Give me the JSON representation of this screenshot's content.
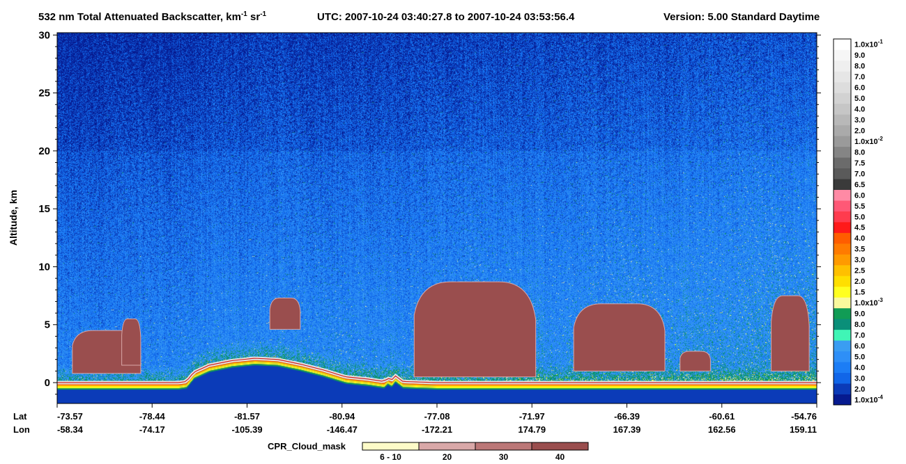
{
  "chart_data": {
    "type": "heatmap",
    "title": "532 nm Total Attenuated Backscatter, km-1 sr-1",
    "title_main": "532 nm Total Attenuated Backscatter, km",
    "title_sup1": "-1",
    "title_sr": " sr",
    "title_sup2": "-1",
    "title_utc": "UTC:  2007-10-24 03:40:27.8  to  2007-10-24 03:53:56.4",
    "title_version": "Version: 5.00  Standard  Daytime",
    "ylabel": "Altitude, km",
    "ylim": [
      -1.8,
      30.2
    ],
    "y_ticks": [
      0,
      5,
      10,
      15,
      20,
      25,
      30
    ],
    "x_row_labels": [
      "Lat",
      "Lon"
    ],
    "lat_ticks": [
      "-73.57",
      "-78.44",
      "-81.57",
      "-80.94",
      "-77.08",
      "-71.97",
      "-66.39",
      "-60.61",
      "-54.76"
    ],
    "lon_ticks": [
      "-58.34",
      "-74.17",
      "-105.39",
      "-146.47",
      "-172.21",
      "174.79",
      "167.39",
      "162.56",
      "159.11"
    ],
    "surface_altitude_km": [
      {
        "x": 0.0,
        "alt": 0.0
      },
      {
        "x": 0.08,
        "alt": 0.0
      },
      {
        "x": 0.16,
        "alt": 0.0
      },
      {
        "x": 0.17,
        "alt": 0.1
      },
      {
        "x": 0.18,
        "alt": 0.9
      },
      {
        "x": 0.2,
        "alt": 1.5
      },
      {
        "x": 0.23,
        "alt": 1.9
      },
      {
        "x": 0.26,
        "alt": 2.1
      },
      {
        "x": 0.29,
        "alt": 2.0
      },
      {
        "x": 0.32,
        "alt": 1.6
      },
      {
        "x": 0.35,
        "alt": 1.1
      },
      {
        "x": 0.38,
        "alt": 0.5
      },
      {
        "x": 0.41,
        "alt": 0.3
      },
      {
        "x": 0.43,
        "alt": 0.1
      },
      {
        "x": 0.44,
        "alt": 0.2
      },
      {
        "x": 0.435,
        "alt": 0.4
      },
      {
        "x": 0.445,
        "alt": 0.6
      },
      {
        "x": 0.455,
        "alt": 0.1
      },
      {
        "x": 0.5,
        "alt": 0.0
      },
      {
        "x": 1.0,
        "alt": 0.0
      }
    ],
    "cloud_regions": [
      {
        "x0": 0.02,
        "x1": 0.11,
        "bottom": 0.8,
        "top": 4.5
      },
      {
        "x0": 0.085,
        "x1": 0.11,
        "bottom": 1.5,
        "top": 5.5
      },
      {
        "x0": 0.28,
        "x1": 0.32,
        "bottom": 4.6,
        "top": 7.3
      },
      {
        "x0": 0.47,
        "x1": 0.63,
        "bottom": 0.5,
        "top": 8.7
      },
      {
        "x0": 0.68,
        "x1": 0.8,
        "bottom": 1.0,
        "top": 6.8
      },
      {
        "x0": 0.82,
        "x1": 0.86,
        "bottom": 1.0,
        "top": 2.7
      },
      {
        "x0": 0.94,
        "x1": 0.99,
        "bottom": 1.0,
        "top": 7.5
      }
    ],
    "colorbar": {
      "colors": [
        "#061a8f",
        "#0b3bb8",
        "#1166e8",
        "#1c7df5",
        "#2e8ff7",
        "#3a9df2",
        "#40f5b6",
        "#0a8f79",
        "#119c55",
        "#f9f99d",
        "#ffff1f",
        "#ffdf00",
        "#ffc000",
        "#ff9a00",
        "#ff7b00",
        "#ff5d00",
        "#ff1a1a",
        "#ff3b4e",
        "#ff5876",
        "#ff8aa5",
        "#3a3a3a",
        "#5a5a5a",
        "#6b6b6b",
        "#858585",
        "#9a9a9a",
        "#aaaaaa",
        "#b8b8b8",
        "#c6c6c6",
        "#d2d2d2",
        "#dddddd",
        "#e6e6e6",
        "#efefef",
        "#f6f6f6",
        "#ffffff"
      ],
      "labels": [
        {
          "m": "1.0x10",
          "e": "-4"
        },
        {
          "m": "2.0"
        },
        {
          "m": "3.0"
        },
        {
          "m": "4.0"
        },
        {
          "m": "5.0"
        },
        {
          "m": "6.0"
        },
        {
          "m": "7.0"
        },
        {
          "m": "8.0"
        },
        {
          "m": "9.0"
        },
        {
          "m": "1.0x10",
          "e": "-3"
        },
        {
          "m": "1.5"
        },
        {
          "m": "2.0"
        },
        {
          "m": "2.5"
        },
        {
          "m": "3.0"
        },
        {
          "m": "3.5"
        },
        {
          "m": "4.0"
        },
        {
          "m": "4.5"
        },
        {
          "m": "5.0"
        },
        {
          "m": "5.5"
        },
        {
          "m": "6.0"
        },
        {
          "m": "6.5"
        },
        {
          "m": "7.0"
        },
        {
          "m": "7.5"
        },
        {
          "m": "8.0"
        },
        {
          "m": "1.0x10",
          "e": "-2"
        },
        {
          "m": "2.0"
        },
        {
          "m": "3.0"
        },
        {
          "m": "4.0"
        },
        {
          "m": "5.0"
        },
        {
          "m": "6.0"
        },
        {
          "m": "7.0"
        },
        {
          "m": "8.0"
        },
        {
          "m": "9.0"
        },
        {
          "m": "1.0x10",
          "e": "-1"
        }
      ]
    },
    "cloud_mask_legend": {
      "label": "CPR_Cloud_mask",
      "entries": [
        {
          "label": "6 - 10",
          "color": "#fdfbc8"
        },
        {
          "label": "20",
          "color": "#d9a8a8"
        },
        {
          "label": "30",
          "color": "#bb7777"
        },
        {
          "label": "40",
          "color": "#9a4e4e"
        }
      ]
    }
  }
}
